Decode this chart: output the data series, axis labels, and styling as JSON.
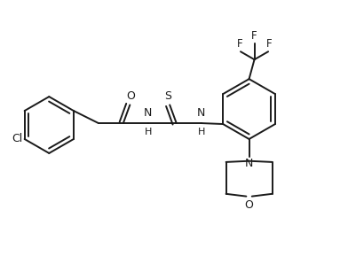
{
  "bg_color": "#ffffff",
  "line_color": "#1a1a1a",
  "line_width": 1.4,
  "font_size": 8.5,
  "figsize": [
    4.02,
    2.98
  ],
  "dpi": 100,
  "xlim": [
    0,
    100
  ],
  "ylim": [
    0,
    74
  ]
}
